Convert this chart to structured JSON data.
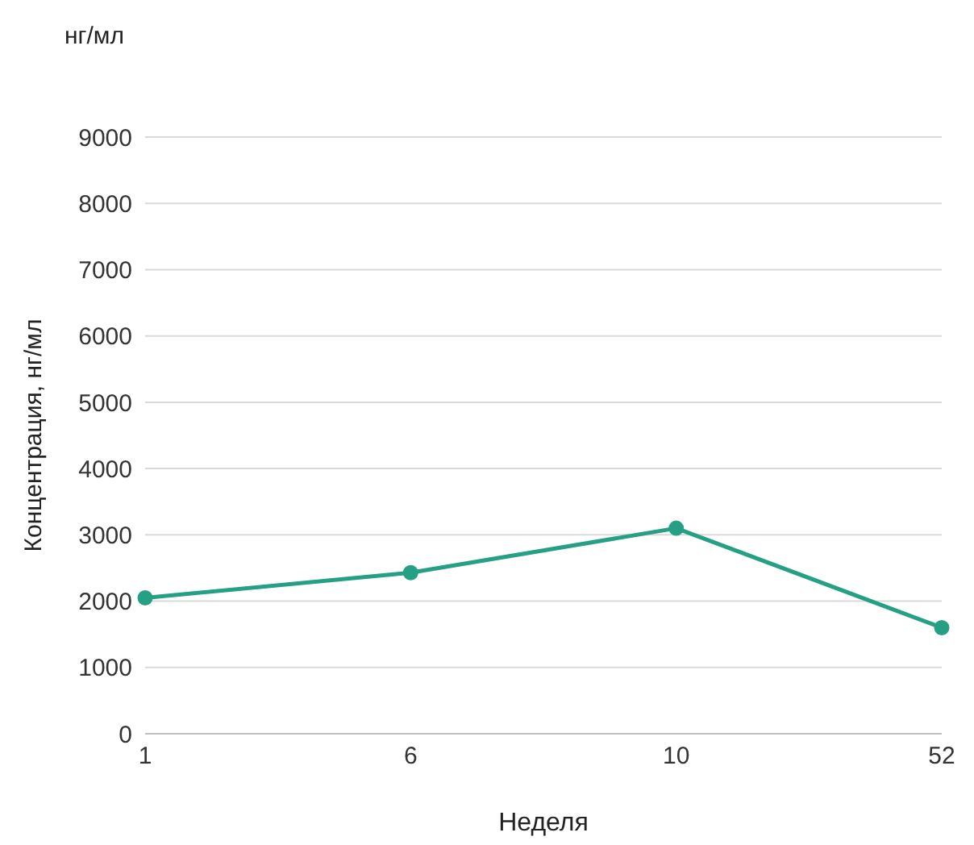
{
  "chart_data": {
    "type": "line",
    "ylabel": "Концентрация, нг/мл",
    "xlabel": "Неделя",
    "annotations": [
      "нг/мл"
    ],
    "categories": [
      "1",
      "6",
      "10",
      "52"
    ],
    "series": [
      {
        "color": "#26a085",
        "values": [
          2050,
          2430,
          3100,
          1600
        ]
      }
    ],
    "ylim": [
      0,
      9000
    ],
    "yticks": [
      0,
      1000,
      2000,
      3000,
      4000,
      5000,
      6000,
      7000,
      8000,
      9000
    ],
    "grid": "y",
    "legend": false,
    "marker": "circle",
    "line_style": "solid"
  }
}
